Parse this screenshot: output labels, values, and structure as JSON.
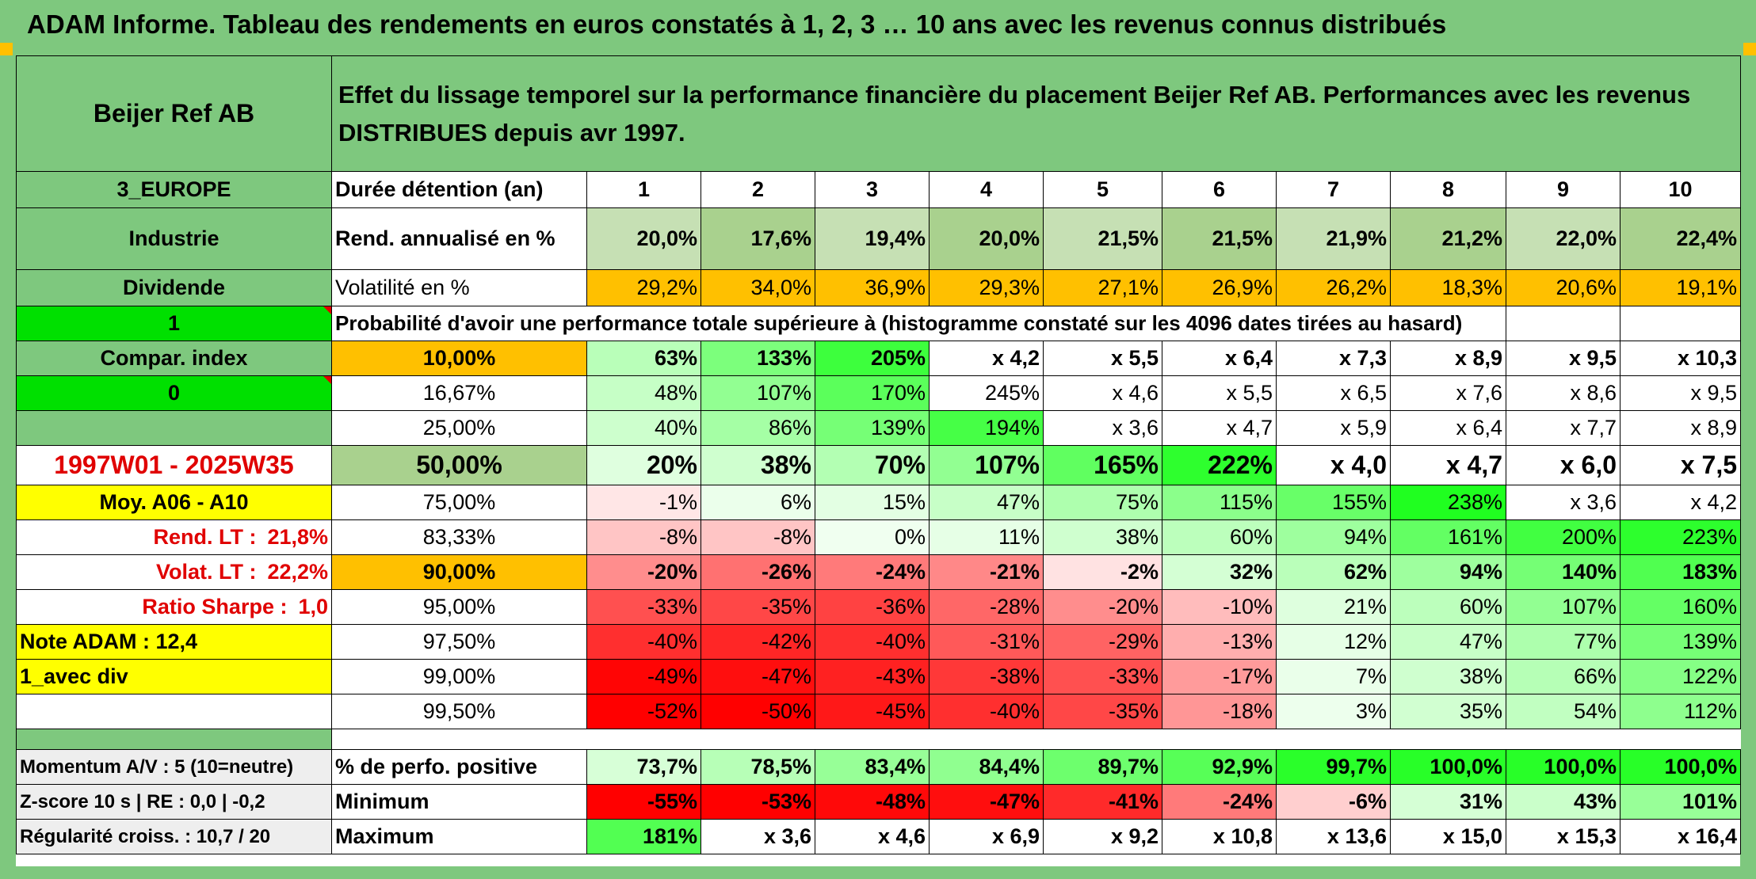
{
  "title": "ADAM Informe. Tableau des rendements en euros constatés à 1, 2, 3 … 10 ans avec les revenus connus distribués",
  "left": {
    "name": "Beijer Ref AB",
    "region": "3_EUROPE",
    "sector": "Industrie",
    "dividend": "Dividende",
    "flag1": "1",
    "compar_label": "Compar. index",
    "flag0": "0",
    "period": "1997W01 - 2025W35",
    "moy": "Moy. A06 - A10",
    "rend_label": "Rend. LT :",
    "rend_value": "21,8%",
    "volat_label": "Volat. LT :",
    "volat_value": "22,2%",
    "sharpe_label": "Ratio Sharpe :",
    "sharpe_value": "1,0",
    "note": "Note ADAM : 12,4",
    "avec_div": "1_avec div",
    "momentum": "Momentum A/V : 5 (10=neutre)",
    "zscore": "Z-score 10 s | RE : 0,0 | -0,2",
    "regularite": "Régularité croiss. : 10,7 / 20"
  },
  "header_text": "Effet du lissage temporel sur la performance financière du placement Beijer Ref AB. Performances avec les revenus DISTRIBUES depuis avr 1997.",
  "duree_label": "Durée détention (an)",
  "years": [
    "1",
    "2",
    "3",
    "4",
    "5",
    "6",
    "7",
    "8",
    "9",
    "10"
  ],
  "rend_label": "Rend. annualisé en %",
  "rend": [
    "20,0%",
    "17,6%",
    "19,4%",
    "20,0%",
    "21,5%",
    "21,5%",
    "21,9%",
    "21,2%",
    "22,0%",
    "22,4%"
  ],
  "vol_label": "Volatilité en %",
  "vol": [
    "29,2%",
    "34,0%",
    "36,9%",
    "29,3%",
    "27,1%",
    "26,9%",
    "26,2%",
    "18,3%",
    "20,6%",
    "19,1%"
  ],
  "proba_text": "Probabilité d'avoir une performance totale supérieure à (histogramme constaté sur les 4096 dates tirées au hasard)",
  "prob_rows": [
    {
      "p": "10,00%",
      "v": [
        "63%",
        "133%",
        "205%",
        "x 4,2",
        "x 5,5",
        "x 6,4",
        "x 7,3",
        "x 8,9",
        "x 9,5",
        "x 10,3"
      ]
    },
    {
      "p": "16,67%",
      "v": [
        "48%",
        "107%",
        "170%",
        "245%",
        "x 4,6",
        "x 5,5",
        "x 6,5",
        "x 7,6",
        "x 8,6",
        "x 9,5"
      ]
    },
    {
      "p": "25,00%",
      "v": [
        "40%",
        "86%",
        "139%",
        "194%",
        "x 3,6",
        "x 4,7",
        "x 5,9",
        "x 6,4",
        "x 7,7",
        "x 8,9"
      ]
    },
    {
      "p": "50,00%",
      "v": [
        "20%",
        "38%",
        "70%",
        "107%",
        "165%",
        "222%",
        "x 4,0",
        "x 4,7",
        "x 6,0",
        "x 7,5"
      ]
    },
    {
      "p": "75,00%",
      "v": [
        "-1%",
        "6%",
        "15%",
        "47%",
        "75%",
        "115%",
        "155%",
        "238%",
        "x 3,6",
        "x 4,2"
      ]
    },
    {
      "p": "83,33%",
      "v": [
        "-8%",
        "-8%",
        "0%",
        "11%",
        "38%",
        "60%",
        "94%",
        "161%",
        "200%",
        "223%"
      ]
    },
    {
      "p": "90,00%",
      "v": [
        "-20%",
        "-26%",
        "-24%",
        "-21%",
        "-2%",
        "32%",
        "62%",
        "94%",
        "140%",
        "183%"
      ]
    },
    {
      "p": "95,00%",
      "v": [
        "-33%",
        "-35%",
        "-36%",
        "-28%",
        "-20%",
        "-10%",
        "21%",
        "60%",
        "107%",
        "160%"
      ]
    },
    {
      "p": "97,50%",
      "v": [
        "-40%",
        "-42%",
        "-40%",
        "-31%",
        "-29%",
        "-13%",
        "12%",
        "47%",
        "77%",
        "139%"
      ]
    },
    {
      "p": "99,00%",
      "v": [
        "-49%",
        "-47%",
        "-43%",
        "-38%",
        "-33%",
        "-17%",
        "7%",
        "38%",
        "66%",
        "122%"
      ]
    },
    {
      "p": "99,50%",
      "v": [
        "-52%",
        "-50%",
        "-45%",
        "-40%",
        "-35%",
        "-18%",
        "3%",
        "35%",
        "54%",
        "112%"
      ]
    }
  ],
  "pos_label": "% de perfo. positive",
  "pos": [
    "73,7%",
    "78,5%",
    "83,4%",
    "84,4%",
    "89,7%",
    "92,9%",
    "99,7%",
    "100,0%",
    "100,0%",
    "100,0%"
  ],
  "min_label": "Minimum",
  "min": [
    "-55%",
    "-53%",
    "-48%",
    "-47%",
    "-41%",
    "-24%",
    "-6%",
    "31%",
    "43%",
    "101%"
  ],
  "max_label": "Maximum",
  "max": [
    "181%",
    "x 3,6",
    "x 4,6",
    "x 6,9",
    "x 9,2",
    "x 10,8",
    "x 13,6",
    "x 15,0",
    "x 15,3",
    "x 16,4"
  ],
  "colors": {
    "frame_green": "#7ec87e",
    "orange": "#ffc000",
    "yellow": "#ffff00",
    "bright_green": "#00e000",
    "red_text": "#e00000"
  }
}
